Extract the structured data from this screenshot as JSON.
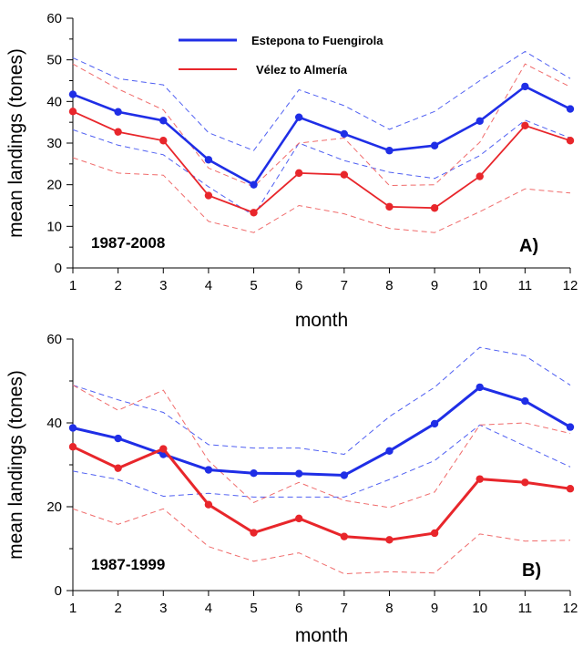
{
  "colors": {
    "blue": "#1f2ee6",
    "red": "#e8262b",
    "blue_dash": "#4f5ff2",
    "red_dash": "#f06b6b",
    "axis": "#000000"
  },
  "legend": [
    {
      "label": "Estepona to Fuengirola",
      "color": "#1f2ee6"
    },
    {
      "label": "Vélez to Almería",
      "color": "#e8262b"
    }
  ],
  "chart_data": [
    {
      "type": "line",
      "panel_label": "A)",
      "period_label": "1987-2008",
      "xlabel": "month",
      "ylabel": "mean landings (tones)",
      "x": [
        1,
        2,
        3,
        4,
        5,
        6,
        7,
        8,
        9,
        10,
        11,
        12
      ],
      "xlim": [
        1,
        12
      ],
      "ylim": [
        0,
        60
      ],
      "yticks": [
        0,
        10,
        20,
        30,
        40,
        50,
        60
      ],
      "series": [
        {
          "name": "Estepona to Fuengirola",
          "color": "#1f2ee6",
          "values": [
            41.7,
            37.5,
            35.4,
            26.0,
            20.0,
            36.2,
            32.2,
            28.2,
            29.4,
            35.3,
            43.6,
            38.2
          ]
        },
        {
          "name": "Vélez to Almería",
          "color": "#e8262b",
          "values": [
            37.6,
            32.7,
            30.6,
            17.4,
            13.3,
            22.8,
            22.4,
            14.7,
            14.4,
            22.0,
            34.2,
            30.6
          ]
        }
      ],
      "bands": [
        {
          "of": "Estepona to Fuengirola",
          "color": "#4f5ff2",
          "upper": [
            50.5,
            45.5,
            44.0,
            32.5,
            28.2,
            42.8,
            39.0,
            33.3,
            37.6,
            45.0,
            52.0,
            45.5
          ],
          "lower": [
            33.2,
            29.5,
            27.2,
            19.5,
            12.6,
            30.0,
            25.8,
            23.0,
            21.5,
            27.0,
            35.5,
            31.2
          ]
        },
        {
          "of": "Vélez to Almería",
          "color": "#f06b6b",
          "upper": [
            49.0,
            43.0,
            38.0,
            24.0,
            19.5,
            30.0,
            31.2,
            19.8,
            20.0,
            30.2,
            49.0,
            43.5
          ],
          "lower": [
            26.5,
            22.8,
            22.3,
            11.2,
            8.5,
            15.0,
            13.0,
            9.5,
            8.5,
            13.5,
            19.0,
            18.0
          ]
        }
      ]
    },
    {
      "type": "line",
      "panel_label": "B)",
      "period_label": "1987-1999",
      "xlabel": "month",
      "ylabel": "mean landings (tones)",
      "x": [
        1,
        2,
        3,
        4,
        5,
        6,
        7,
        8,
        9,
        10,
        11,
        12
      ],
      "xlim": [
        1,
        12
      ],
      "ylim": [
        0,
        60
      ],
      "yticks": [
        0,
        20,
        40,
        60
      ],
      "series": [
        {
          "name": "Estepona to Fuengirola",
          "color": "#1f2ee6",
          "values": [
            38.8,
            36.3,
            32.5,
            28.8,
            28.0,
            27.9,
            27.5,
            33.3,
            39.8,
            48.5,
            45.2,
            39.0
          ]
        },
        {
          "name": "Vélez to Almería",
          "color": "#e8262b",
          "values": [
            34.3,
            29.2,
            33.8,
            20.5,
            13.8,
            17.2,
            12.9,
            12.1,
            13.7,
            26.6,
            25.8,
            24.3
          ]
        }
      ],
      "bands": [
        {
          "of": "Estepona to Fuengirola",
          "color": "#4f5ff2",
          "upper": [
            49.0,
            45.5,
            42.5,
            34.8,
            34.0,
            34.0,
            32.5,
            41.5,
            48.5,
            58.0,
            56.0,
            49.0
          ],
          "lower": [
            28.5,
            26.5,
            22.5,
            23.2,
            22.3,
            22.3,
            22.3,
            26.5,
            31.0,
            39.5,
            34.5,
            29.5
          ]
        },
        {
          "of": "Vélez to Almería",
          "color": "#f06b6b",
          "upper": [
            49.0,
            43.0,
            47.8,
            31.0,
            21.0,
            25.8,
            21.5,
            19.8,
            23.5,
            39.5,
            40.0,
            37.5
          ],
          "lower": [
            19.5,
            15.8,
            19.5,
            10.5,
            7.0,
            9.0,
            4.0,
            4.5,
            4.2,
            13.5,
            11.8,
            12.0
          ]
        }
      ]
    }
  ]
}
